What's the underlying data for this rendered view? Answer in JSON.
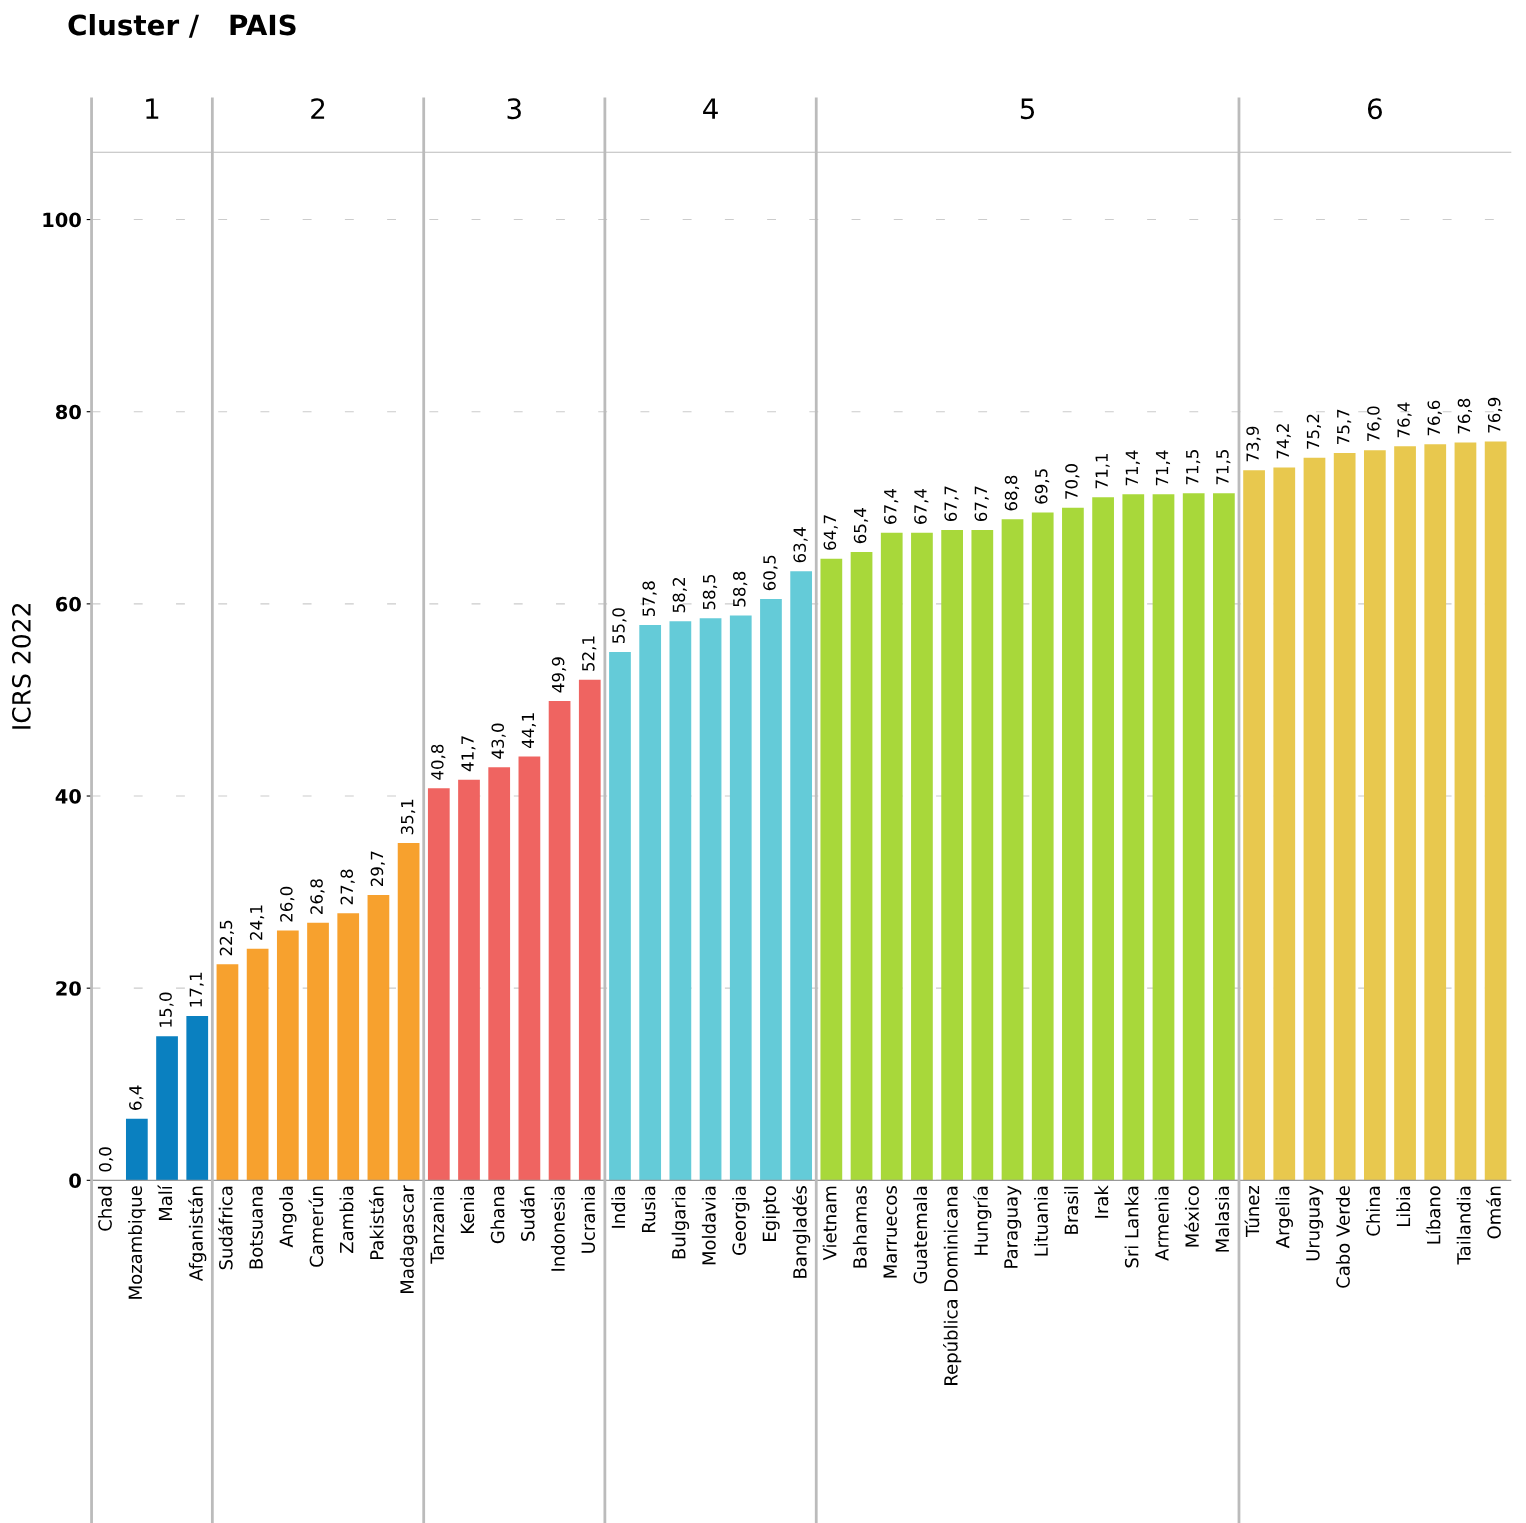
{
  "chart_data": {
    "type": "bar",
    "title": "Cluster /   PAIS",
    "ylabel": "ICRS 2022",
    "categories": [
      "Chad",
      "Mozambique",
      "Malí",
      "Afganistán",
      "Sudáfrica",
      "Botsuana",
      "Angola",
      "Camerún",
      "Zambia",
      "Pakistán",
      "Madagascar",
      "Tanzania",
      "Kenia",
      "Ghana",
      "Sudán",
      "Indonesia",
      "Ucrania",
      "India",
      "Rusia",
      "Bulgaria",
      "Moldavia",
      "Georgia",
      "Egipto",
      "Bangladés",
      "Vietnam",
      "Bahamas",
      "Marruecos",
      "Guatemala",
      "República Dominicana",
      "Hungría",
      "Paraguay",
      "Lituania",
      "Brasil",
      "Irak",
      "Sri Lanka",
      "Armenia",
      "México",
      "Malasia",
      "Túnez",
      "Argelia",
      "Uruguay",
      "Cabo Verde",
      "China",
      "Libia",
      "Líbano",
      "Tailandia",
      "Omán"
    ],
    "values": [
      0.0,
      6.4,
      15.0,
      17.1,
      22.5,
      24.1,
      26.0,
      26.8,
      27.8,
      29.7,
      35.1,
      40.8,
      41.7,
      43.0,
      44.1,
      49.9,
      52.1,
      55.0,
      57.8,
      58.2,
      58.5,
      58.8,
      60.5,
      63.4,
      64.7,
      65.4,
      67.4,
      67.4,
      67.7,
      67.7,
      68.8,
      69.5,
      70.0,
      71.1,
      71.4,
      71.4,
      71.5,
      71.5,
      73.9,
      74.2,
      75.2,
      75.7,
      76.0,
      76.4,
      76.6,
      76.8,
      76.9
    ],
    "colors": [
      "#0a80c0",
      "#0a80c0",
      "#0a80c0",
      "#0a80c0",
      "#f7a12e",
      "#f7a12e",
      "#f7a12e",
      "#f7a12e",
      "#f7a12e",
      "#f7a12e",
      "#f7a12e",
      "#ef6461",
      "#ef6461",
      "#ef6461",
      "#ef6461",
      "#ef6461",
      "#ef6461",
      "#64cbd8",
      "#64cbd8",
      "#64cbd8",
      "#64cbd8",
      "#64cbd8",
      "#64cbd8",
      "#64cbd8",
      "#a8d83a",
      "#a8d83a",
      "#a8d83a",
      "#a8d83a",
      "#a8d83a",
      "#a8d83a",
      "#a8d83a",
      "#a8d83a",
      "#a8d83a",
      "#a8d83a",
      "#a8d83a",
      "#a8d83a",
      "#a8d83a",
      "#a8d83a",
      "#e8c84e",
      "#e8c84e",
      "#e8c84e",
      "#e8c84e",
      "#e8c84e",
      "#e8c84e",
      "#e8c84e",
      "#e8c84e",
      "#e8c84e"
    ],
    "annotations": [
      "1",
      "2",
      "3",
      "4",
      "5",
      "6"
    ],
    "value_labels": [
      "0,0",
      "6,4",
      "15,0",
      "17,1",
      "22,5",
      "24,1",
      "26,0",
      "26,8",
      "27,8",
      "29,7",
      "35,1",
      "40,8",
      "41,7",
      "43,0",
      "44,1",
      "49,9",
      "52,1",
      "55,0",
      "57,8",
      "58,2",
      "58,5",
      "58,8",
      "60,5",
      "63,4",
      "64,7",
      "65,4",
      "67,4",
      "67,4",
      "67,7",
      "67,7",
      "68,8",
      "69,5",
      "70,0",
      "71,1",
      "71,4",
      "71,4",
      "71,5",
      "71,5",
      "73,9",
      "74,2",
      "75,2",
      "75,7",
      "76,0",
      "76,4",
      "76,6",
      "76,8",
      "76,9"
    ],
    "ylim": [
      0,
      107
    ],
    "yticks": [
      0,
      20,
      40,
      60,
      80,
      100
    ],
    "grid": "y"
  }
}
